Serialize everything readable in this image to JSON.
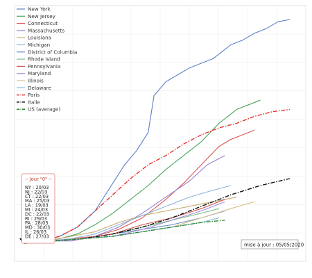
{
  "chart_data": {
    "type": "line",
    "title": "",
    "xlabel": "",
    "ylabel": "",
    "grid": true,
    "legend_position": "top-left",
    "ylim": [
      0,
      100
    ],
    "series": [
      {
        "name": "New York",
        "color": "#5b7fc7",
        "style": "solid",
        "x": [
          0,
          3,
          6,
          9,
          12,
          15,
          17,
          19,
          21,
          22,
          24,
          26,
          28,
          30,
          32,
          34,
          35,
          37,
          39,
          41,
          43,
          45
        ],
        "y": [
          0,
          1,
          3,
          7,
          14,
          26,
          34,
          40,
          48,
          64,
          70,
          73,
          76,
          78,
          80,
          84,
          86,
          88,
          91,
          93,
          96,
          97
        ]
      },
      {
        "name": "New Jersey",
        "color": "#4aa35a",
        "style": "solid",
        "x": [
          0,
          3,
          6,
          9,
          12,
          15,
          18,
          21,
          24,
          27,
          30,
          33,
          36,
          38,
          40
        ],
        "y": [
          0,
          1,
          2,
          4,
          8,
          13,
          19,
          25,
          32,
          38,
          44,
          52,
          58,
          60,
          62
        ]
      },
      {
        "name": "Connecticut",
        "color": "#d9534f",
        "style": "solid",
        "x": [
          0,
          4,
          8,
          12,
          16,
          20,
          24,
          27,
          30,
          33,
          35,
          37,
          39
        ],
        "y": [
          0,
          1,
          2,
          3,
          6,
          11,
          19,
          26,
          34,
          42,
          45,
          47,
          49
        ]
      },
      {
        "name": "Massachusetts",
        "color": "#9b7fd0",
        "style": "solid",
        "x": [
          0,
          4,
          8,
          12,
          16,
          20,
          24,
          28,
          31,
          34
        ],
        "y": [
          0,
          1,
          1,
          3,
          7,
          13,
          20,
          27,
          34,
          38
        ]
      },
      {
        "name": "Louisiana",
        "color": "#c9a96e",
        "style": "solid",
        "x": [
          0,
          4,
          8,
          12,
          16,
          20,
          24,
          28,
          32,
          36
        ],
        "y": [
          0,
          1,
          3,
          5,
          9,
          12,
          14,
          16,
          18,
          20
        ]
      },
      {
        "name": "Michigan",
        "color": "#8ab4dc",
        "style": "solid",
        "x": [
          0,
          4,
          8,
          12,
          16,
          20,
          24,
          28,
          32,
          35
        ],
        "y": [
          0,
          1,
          2,
          4,
          8,
          12,
          16,
          20,
          23,
          25
        ]
      },
      {
        "name": "District of Columbia",
        "color": "#6a8fc2",
        "style": "solid",
        "x": [
          0,
          5,
          10,
          15,
          20,
          25,
          30,
          34
        ],
        "y": [
          0,
          1,
          2,
          4,
          6,
          8,
          11,
          14
        ]
      },
      {
        "name": "Rhode Island",
        "color": "#7fbf8a",
        "style": "solid",
        "x": [
          0,
          5,
          10,
          15,
          20,
          25,
          30,
          33
        ],
        "y": [
          0,
          1,
          2,
          4,
          7,
          10,
          13,
          15
        ]
      },
      {
        "name": "Pennsylvania",
        "color": "#c9524e",
        "style": "solid",
        "x": [
          0,
          5,
          10,
          15,
          20,
          25,
          30,
          34
        ],
        "y": [
          0,
          1,
          2,
          4,
          8,
          11,
          15,
          19
        ]
      },
      {
        "name": "Maryland",
        "color": "#a58fd6",
        "style": "solid",
        "x": [
          0,
          5,
          10,
          15,
          20,
          25,
          30,
          34
        ],
        "y": [
          0,
          1,
          2,
          3,
          6,
          10,
          14,
          18
        ]
      },
      {
        "name": "Illinois",
        "color": "#d6c28a",
        "style": "solid",
        "x": [
          0,
          5,
          10,
          15,
          20,
          25,
          30,
          35,
          39
        ],
        "y": [
          0,
          1,
          2,
          3,
          5,
          7,
          11,
          15,
          18
        ]
      },
      {
        "name": "Delaware",
        "color": "#72b6d6",
        "style": "solid",
        "x": [
          0,
          5,
          10,
          15,
          20,
          25,
          30,
          33
        ],
        "y": [
          0,
          1,
          2,
          3,
          5,
          7,
          9,
          11
        ]
      },
      {
        "name": "Paris",
        "color": "#e8312b",
        "style": "dashdot",
        "x": [
          0,
          3,
          6,
          9,
          12,
          15,
          18,
          21,
          24,
          27,
          30,
          33,
          36,
          39,
          42,
          45
        ],
        "y": [
          0,
          1,
          3,
          7,
          14,
          21,
          28,
          34,
          38,
          43,
          47,
          50,
          52,
          55,
          57,
          58
        ]
      },
      {
        "name": "Italie",
        "color": "#111111",
        "style": "dashdot",
        "x": [
          0,
          5,
          10,
          15,
          20,
          25,
          30,
          35,
          40,
          45
        ],
        "y": [
          0,
          1,
          2,
          4,
          7,
          11,
          16,
          21,
          25,
          28
        ]
      },
      {
        "name": "US (average)",
        "color": "#2a8a2a",
        "style": "dashdot",
        "x": [
          0,
          5,
          10,
          15,
          20,
          25,
          30,
          34
        ],
        "y": [
          0,
          1,
          2,
          3,
          5,
          7,
          9,
          10
        ]
      }
    ],
    "xlim": [
      0,
      45
    ]
  },
  "day_zero_box": {
    "title": "-- Jour \"0\" --",
    "lines": [
      "NY : 20/03",
      "NJ : 22/03",
      "CT : 22/03",
      "MA : 25/03",
      "LA : 19/03",
      "MI : 24/03",
      "DC : 22/03",
      "RI : 29/03",
      "PA : 28/03",
      "MD : 30/03",
      "IL : 26/03",
      "DE : 27/03"
    ]
  },
  "update_label": "mise à jour : 05/05/2020"
}
